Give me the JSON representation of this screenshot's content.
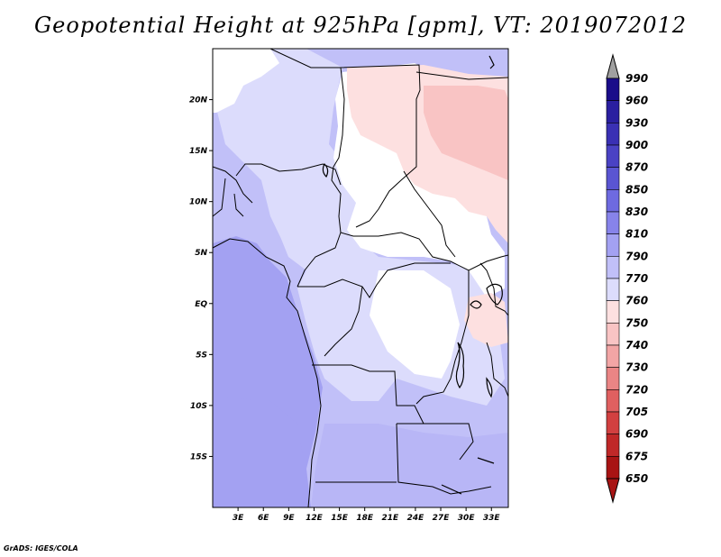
{
  "title": "Geopotential Height at 925hPa [gpm], VT: 2019072012",
  "credit": "GrADS: IGES/COLA",
  "map": {
    "lon_range": [
      0,
      35
    ],
    "lat_range": [
      -20,
      25
    ],
    "x_ticks": [
      "3E",
      "6E",
      "9E",
      "12E",
      "15E",
      "18E",
      "21E",
      "24E",
      "27E",
      "30E",
      "33E"
    ],
    "x_tick_values": [
      3,
      6,
      9,
      12,
      15,
      18,
      21,
      24,
      27,
      30,
      33
    ],
    "y_ticks": [
      "20N",
      "15N",
      "10N",
      "5N",
      "EQ",
      "5S",
      "10S",
      "15S"
    ],
    "y_tick_values": [
      20,
      15,
      10,
      5,
      0,
      -5,
      -10,
      -15
    ]
  },
  "colorbar": {
    "labels": [
      "990",
      "960",
      "930",
      "900",
      "870",
      "850",
      "830",
      "810",
      "790",
      "770",
      "760",
      "750",
      "740",
      "730",
      "720",
      "705",
      "690",
      "675",
      "650"
    ],
    "colors": [
      "#1a0d8a",
      "#2a1fa0",
      "#3a30b4",
      "#4a42c4",
      "#5a55d2",
      "#6e6ae0",
      "#8783ea",
      "#a3a1f2",
      "#c1c0f8",
      "#dcdcfc",
      "#ffffff",
      "#fde0e0",
      "#f9c4c4",
      "#f2a5a5",
      "#ea8585",
      "#e06060",
      "#d24040",
      "#c02828",
      "#a81414"
    ],
    "top_triangle_color": "#a0a0a0",
    "bottom_triangle_color": "#a81414"
  },
  "regions": {
    "ocean_color": "#a3a1f2",
    "west_land_color": "#c1c0f8",
    "central_color": "#dcdcfc",
    "sahel_color": "#ffffff",
    "ne_color": "#fde0e0",
    "ne_core_color": "#f9c4c4",
    "south_color": "#b8b6f6"
  }
}
